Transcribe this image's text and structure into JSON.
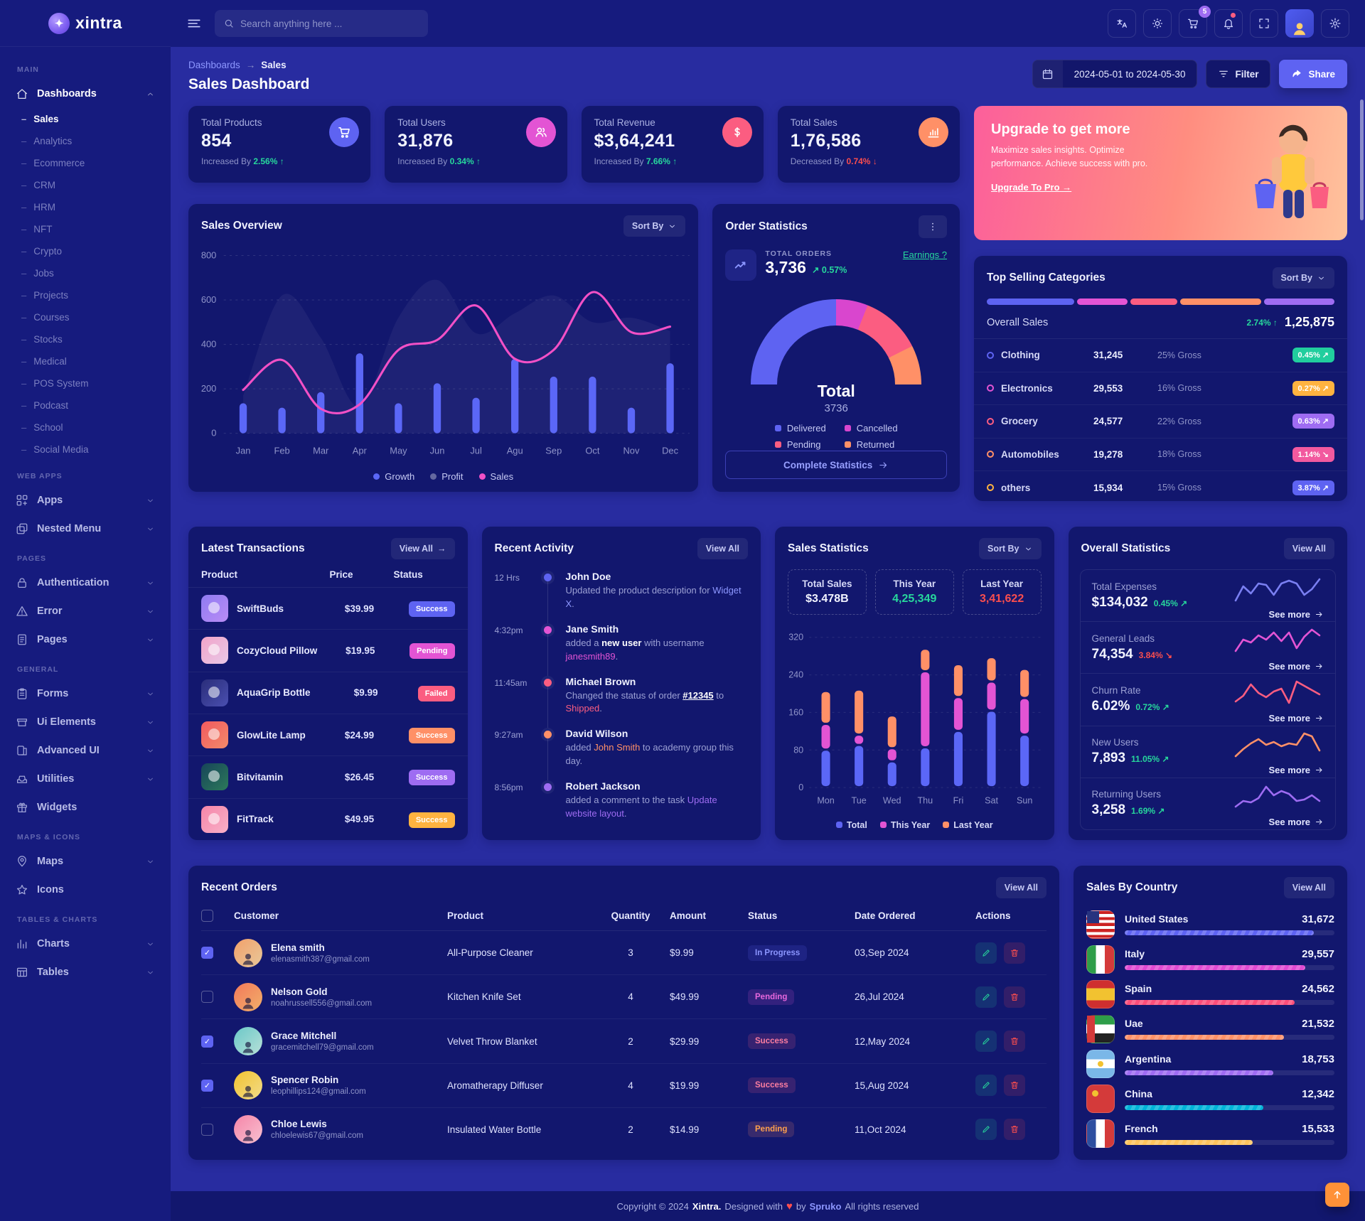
{
  "brand": {
    "name": "xintra"
  },
  "header": {
    "search_placeholder": "Search anything here ...",
    "cart_badge": "5",
    "icons": [
      "translate-icon",
      "light-mode-icon",
      "cart-icon",
      "notifications-icon",
      "fullscreen-icon",
      "avatar",
      "settings-icon"
    ]
  },
  "sidebar": {
    "sections": [
      {
        "label": "MAIN",
        "items": [
          {
            "label": "Dashboards",
            "icon": "home",
            "expanded": true,
            "active": true,
            "children": [
              "Sales",
              "Analytics",
              "Ecommerce",
              "CRM",
              "HRM",
              "NFT",
              "Crypto",
              "Jobs",
              "Projects",
              "Courses",
              "Stocks",
              "Medical",
              "POS System",
              "Podcast",
              "School",
              "Social Media"
            ],
            "active_child": "Sales"
          }
        ]
      },
      {
        "label": "WEB APPS",
        "items": [
          {
            "label": "Apps",
            "icon": "apps",
            "caret": true
          },
          {
            "label": "Nested Menu",
            "icon": "nested",
            "caret": true
          }
        ]
      },
      {
        "label": "PAGES",
        "items": [
          {
            "label": "Authentication",
            "icon": "lock",
            "caret": true
          },
          {
            "label": "Error",
            "icon": "warning",
            "caret": true
          },
          {
            "label": "Pages",
            "icon": "pages",
            "caret": true
          }
        ]
      },
      {
        "label": "GENERAL",
        "items": [
          {
            "label": "Forms",
            "icon": "forms",
            "caret": true
          },
          {
            "label": "Ui Elements",
            "icon": "uielements",
            "caret": true
          },
          {
            "label": "Advanced UI",
            "icon": "advanced",
            "caret": true
          },
          {
            "label": "Utilities",
            "icon": "utilities",
            "caret": true
          },
          {
            "label": "Widgets",
            "icon": "widgets",
            "caret": false
          }
        ]
      },
      {
        "label": "MAPS & ICONS",
        "items": [
          {
            "label": "Maps",
            "icon": "maps",
            "caret": true
          },
          {
            "label": "Icons",
            "icon": "star",
            "caret": false
          }
        ]
      },
      {
        "label": "TABLES & CHARTS",
        "items": [
          {
            "label": "Charts",
            "icon": "charts",
            "caret": true
          },
          {
            "label": "Tables",
            "icon": "tables",
            "caret": true
          }
        ]
      }
    ]
  },
  "page": {
    "breadcrumb_parent": "Dashboards",
    "breadcrumb_current": "Sales",
    "title": "Sales Dashboard",
    "date_range": "2024-05-01 to 2024-05-30",
    "filter_label": "Filter",
    "share_label": "Share"
  },
  "stat_cards": [
    {
      "label": "Total Products",
      "value": "854",
      "prefix": "Increased By",
      "delta": "2.56%",
      "dir": "up",
      "icon": "cart",
      "icon_bg": "#5e63f2"
    },
    {
      "label": "Total Users",
      "value": "31,876",
      "prefix": "Increased By",
      "delta": "0.34%",
      "dir": "up",
      "icon": "users",
      "icon_bg": "#e354d4"
    },
    {
      "label": "Total Revenue",
      "value": "$3,64,241",
      "prefix": "Increased By",
      "delta": "7.66%",
      "dir": "up",
      "icon": "dollar",
      "icon_bg": "#fb5d81"
    },
    {
      "label": "Total Sales",
      "value": "1,76,586",
      "prefix": "Decreased By",
      "delta": "0.74%",
      "dir": "down",
      "icon": "chartup",
      "icon_bg": "#ff9067"
    }
  ],
  "upgrade": {
    "title": "Upgrade to get more",
    "body": "Maximize sales insights. Optimize performance. Achieve success with pro.",
    "cta": "Upgrade To Pro"
  },
  "sales_overview": {
    "title": "Sales Overview",
    "sort_label": "Sort By"
  },
  "order_statistics": {
    "title": "Order Statistics",
    "total_label": "TOTAL ORDERS",
    "total_value": "3,736",
    "delta": "0.57%",
    "earnings_link": "Earnings ?",
    "gauge_center_label": "Total",
    "gauge_center_value": "3736",
    "cta": "Complete Statistics",
    "segments": [
      {
        "label": "Delivered",
        "value": 1870,
        "color": "#5e63f2"
      },
      {
        "label": "Cancelled",
        "value": 450,
        "color": "#d946ce"
      },
      {
        "label": "Pending",
        "value": 860,
        "color": "#fb5d81"
      },
      {
        "label": "Returned",
        "value": 556,
        "color": "#ff9067"
      }
    ]
  },
  "top_selling": {
    "title": "Top Selling Categories",
    "sort_label": "Sort By",
    "bar_segments": [
      {
        "color": "#5e63f2",
        "pct": 26
      },
      {
        "color": "#e354d4",
        "pct": 15
      },
      {
        "color": "#fb5d81",
        "pct": 14
      },
      {
        "color": "#ff9067",
        "pct": 24
      },
      {
        "color": "#9e6cf2",
        "pct": 21
      }
    ],
    "overall_label": "Overall Sales",
    "overall_delta": "2.74%",
    "overall_value": "1,25,875",
    "rows": [
      {
        "name": "Clothing",
        "dot": "#5e63f2",
        "value": "31,245",
        "gross": "25% Gross",
        "badge": "0.45%",
        "badge_bg": "#21ce9e",
        "trend": "up"
      },
      {
        "name": "Electronics",
        "dot": "#e354d4",
        "value": "29,553",
        "gross": "16% Gross",
        "badge": "0.27%",
        "badge_bg": "#ffb340",
        "trend": "up"
      },
      {
        "name": "Grocery",
        "dot": "#fb5d81",
        "value": "24,577",
        "gross": "22% Gross",
        "badge": "0.63%",
        "badge_bg": "#9e6cf2",
        "trend": "up"
      },
      {
        "name": "Automobiles",
        "dot": "#ff9067",
        "value": "19,278",
        "gross": "18% Gross",
        "badge": "1.14%",
        "badge_bg": "#f2599f",
        "trend": "down"
      },
      {
        "name": "others",
        "dot": "#ffb340",
        "value": "15,934",
        "gross": "15% Gross",
        "badge": "3.87%",
        "badge_bg": "#5e63f2",
        "trend": "up"
      }
    ]
  },
  "latest_transactions": {
    "title": "Latest Transactions",
    "view_all": "View All",
    "col_product": "Product",
    "col_price": "Price",
    "col_status": "Status",
    "rows": [
      {
        "name": "SwiftBuds",
        "price": "$39.99",
        "status": "Success",
        "badge_bg": "#5e63f2",
        "thumb": "linear-gradient(135deg,#8f7bf2,#b98cf5)"
      },
      {
        "name": "CozyCloud Pillow",
        "price": "$19.95",
        "status": "Pending",
        "badge_bg": "#e354d4",
        "thumb": "linear-gradient(135deg,#f2a3c8,#e8c8e8)"
      },
      {
        "name": "AquaGrip Bottle",
        "price": "$9.99",
        "status": "Failed",
        "badge_bg": "#fb5d81",
        "thumb": "linear-gradient(135deg,#2a2d7a,#4a4fb0)"
      },
      {
        "name": "GlowLite Lamp",
        "price": "$24.99",
        "status": "Success",
        "badge_bg": "#ff9067",
        "thumb": "linear-gradient(135deg,#f2595f,#f28a6a)"
      },
      {
        "name": "Bitvitamin",
        "price": "$26.45",
        "status": "Success",
        "badge_bg": "#9e6cf2",
        "thumb": "linear-gradient(135deg,#17445a,#2c7a5a)"
      },
      {
        "name": "FitTrack",
        "price": "$49.95",
        "status": "Success",
        "badge_bg": "#ffb340",
        "thumb": "linear-gradient(135deg,#f585a8,#f8b0c8)"
      }
    ]
  },
  "recent_activity": {
    "title": "Recent Activity",
    "view_all": "View All",
    "items": [
      {
        "time": "12 Hrs",
        "dot": "#5e63f2",
        "who": "John Doe",
        "body": [
          {
            "t": "Updated the product description for "
          },
          {
            "t": "Widget X",
            "c": "#8d97ff"
          },
          {
            "t": "."
          }
        ]
      },
      {
        "time": "4:32pm",
        "dot": "#e354d4",
        "who": "Jane Smith",
        "body": [
          {
            "t": "added a "
          },
          {
            "t": "new user",
            "c": "#ffffff",
            "b": true
          },
          {
            "t": " with username "
          },
          {
            "t": "janesmith89",
            "c": "#e354d4"
          },
          {
            "t": "."
          }
        ]
      },
      {
        "time": "11:45am",
        "dot": "#fb5d81",
        "who": "Michael Brown",
        "body": [
          {
            "t": "Changed the status of order "
          },
          {
            "t": "#12345",
            "c": "#ffffff",
            "b": true,
            "u": true
          },
          {
            "t": " to "
          },
          {
            "t": "Shipped",
            "c": "#fb5d81"
          },
          {
            "t": "."
          }
        ]
      },
      {
        "time": "9:27am",
        "dot": "#ff9067",
        "who": "David Wilson",
        "body": [
          {
            "t": "added "
          },
          {
            "t": "John Smith",
            "c": "#ff9067"
          },
          {
            "t": " to academy group this day."
          }
        ]
      },
      {
        "time": "8:56pm",
        "dot": "#9e6cf2",
        "who": "Robert Jackson",
        "body": [
          {
            "t": "added a comment to the task "
          },
          {
            "t": "Update website layout",
            "c": "#9e6cf2"
          },
          {
            "t": "."
          }
        ]
      }
    ]
  },
  "sales_statistics": {
    "title": "Sales Statistics",
    "sort_label": "Sort By",
    "boxes": [
      {
        "label": "Total Sales",
        "value": "$3.478B",
        "color": "#f2f4ff"
      },
      {
        "label": "This Year",
        "value": "4,25,349",
        "color": "#27d79c"
      },
      {
        "label": "Last Year",
        "value": "3,41,622",
        "color": "#fb4e4e"
      }
    ],
    "legend": [
      {
        "label": "Total",
        "color": "#5e63f2"
      },
      {
        "label": "This Year",
        "color": "#e354d4"
      },
      {
        "label": "Last Year",
        "color": "#ff9067"
      }
    ]
  },
  "overall_statistics": {
    "title": "Overall Statistics",
    "view_all": "View All",
    "see_more": "See more",
    "rows": [
      {
        "label": "Total Expenses",
        "value": "$134,032",
        "pct": "0.45%",
        "dir": "up",
        "spark_color": "#7a7ff2",
        "spark": [
          6,
          26,
          16,
          30,
          28,
          14,
          30,
          34,
          30,
          14,
          22,
          36
        ]
      },
      {
        "label": "General Leads",
        "value": "74,354",
        "pct": "3.84%",
        "dir": "down",
        "spark_color": "#e354d4",
        "spark": [
          8,
          24,
          20,
          30,
          24,
          34,
          22,
          34,
          12,
          28,
          38,
          30
        ]
      },
      {
        "label": "Churn Rate",
        "value": "6.02%",
        "pct": "0.72%",
        "dir": "up",
        "spark_color": "#fb5d81",
        "spark": [
          10,
          18,
          34,
          22,
          16,
          24,
          28,
          8,
          38,
          32,
          26,
          20
        ]
      },
      {
        "label": "New Users",
        "value": "7,893",
        "pct": "11.05%",
        "dir": "up",
        "spark_color": "#ff9067",
        "spark": [
          6,
          16,
          24,
          30,
          22,
          26,
          20,
          24,
          22,
          38,
          34,
          14
        ]
      },
      {
        "label": "Returning Users",
        "value": "3,258",
        "pct": "1.69%",
        "dir": "up",
        "spark_color": "#9e6cf2",
        "spark": [
          8,
          16,
          14,
          20,
          36,
          24,
          30,
          26,
          16,
          18,
          24,
          16
        ]
      }
    ]
  },
  "recent_orders": {
    "title": "Recent Orders",
    "view_all": "View All",
    "columns": [
      "Customer",
      "Product",
      "Quantity",
      "Amount",
      "Status",
      "Date Ordered",
      "Actions"
    ],
    "rows": [
      {
        "checked": true,
        "name": "Elena smith",
        "email": "elenasmith387@gmail.com",
        "avatar_bg": "linear-gradient(135deg,#f2a06a,#e8c89a)",
        "product": "All-Purpose Cleaner",
        "qty": "3",
        "amount": "$9.99",
        "status": "In Progress",
        "status_color": "#8b95ff",
        "status_bg": "rgba(94,99,242,.16)",
        "date": "03,Sep 2024"
      },
      {
        "checked": false,
        "name": "Nelson Gold",
        "email": "noahrussell556@gmail.com",
        "avatar_bg": "linear-gradient(135deg,#f2785a,#f2b06a)",
        "product": "Kitchen Knife Set",
        "qty": "4",
        "amount": "$49.99",
        "status": "Pending",
        "status_color": "#e868dd",
        "status_bg": "rgba(227,84,212,.16)",
        "date": "26,Jul 2024"
      },
      {
        "checked": true,
        "name": "Grace Mitchell",
        "email": "gracemitchell79@gmail.com",
        "avatar_bg": "linear-gradient(135deg,#6ac8c8,#b8e0d8)",
        "product": "Velvet Throw Blanket",
        "qty": "2",
        "amount": "$29.99",
        "status": "Success",
        "status_color": "#fb7da0",
        "status_bg": "rgba(251,93,129,.16)",
        "date": "12,May 2024"
      },
      {
        "checked": true,
        "name": "Spencer Robin",
        "email": "leophillips124@gmail.com",
        "avatar_bg": "linear-gradient(135deg,#f2c230,#f2dc8a)",
        "product": "Aromatherapy Diffuser",
        "qty": "4",
        "amount": "$19.99",
        "status": "Success",
        "status_color": "#fb7da0",
        "status_bg": "rgba(251,93,129,.16)",
        "date": "15,Aug 2024"
      },
      {
        "checked": false,
        "name": "Chloe Lewis",
        "email": "chloelewis67@gmail.com",
        "avatar_bg": "linear-gradient(135deg,#f585a8,#f8c0d0)",
        "product": "Insulated Water Bottle",
        "qty": "2",
        "amount": "$14.99",
        "status": "Pending",
        "status_color": "#ffa04d",
        "status_bg": "rgba(255,144,103,.16)",
        "date": "11,Oct 2024"
      }
    ]
  },
  "sales_by_country": {
    "title": "Sales By Country",
    "view_all": "View All",
    "rows": [
      {
        "name": "United States",
        "value": "31,672",
        "flag": "flag-us",
        "bar": "#5e63f2",
        "pct": 90
      },
      {
        "name": "Italy",
        "value": "29,557",
        "flag": "flag-it",
        "bar": "#e04ad2",
        "pct": 86
      },
      {
        "name": "Spain",
        "value": "24,562",
        "flag": "flag-es",
        "bar": "#fb4e7a",
        "pct": 81
      },
      {
        "name": "Uae",
        "value": "21,532",
        "flag": "flag-ae",
        "bar": "#ff9067",
        "pct": 76
      },
      {
        "name": "Argentina",
        "value": "18,753",
        "flag": "flag-ar",
        "bar": "#9e6cf2",
        "pct": 71
      },
      {
        "name": "China",
        "value": "12,342",
        "flag": "flag-cn",
        "bar": "#00b3d8",
        "pct": 66
      },
      {
        "name": "French",
        "value": "15,533",
        "flag": "flag-fr",
        "bar": "#ffc45d",
        "pct": 61
      }
    ]
  },
  "footer": {
    "pre": "Copyright © 2024",
    "brand": "Xintra.",
    "mid": "Designed with",
    "heart": "♥",
    "by": "by",
    "spruko": "Spruko",
    "post": "All rights reserved"
  },
  "chart_data": [
    {
      "type": "bar+line+area",
      "title": "Sales Overview",
      "categories": [
        "Jan",
        "Feb",
        "Mar",
        "Apr",
        "May",
        "Jun",
        "Jul",
        "Agu",
        "Sep",
        "Oct",
        "Nov",
        "Dec"
      ],
      "series": [
        {
          "name": "Growth",
          "type": "bar",
          "color": "#5b67f7",
          "values": [
            135,
            115,
            185,
            360,
            135,
            225,
            160,
            335,
            255,
            255,
            115,
            315
          ]
        },
        {
          "name": "Profit",
          "type": "area",
          "color": "rgba(255,255,255,0.05)",
          "values": [
            170,
            620,
            430,
            120,
            520,
            690,
            450,
            540,
            620,
            500,
            520,
            460
          ]
        },
        {
          "name": "Sales",
          "type": "line",
          "color": "#f250c6",
          "values": [
            195,
            330,
            110,
            130,
            375,
            420,
            575,
            335,
            375,
            635,
            455,
            480
          ]
        }
      ],
      "ylim": [
        0,
        800
      ],
      "yticks": [
        0,
        200,
        400,
        600,
        800
      ],
      "grid": true,
      "legend_position": "bottom"
    },
    {
      "type": "stacked-bar",
      "title": "Sales Statistics",
      "categories": [
        "Mon",
        "Tue",
        "Wed",
        "Thu",
        "Fri",
        "Sat",
        "Sun"
      ],
      "series": [
        {
          "name": "Total",
          "color": "#5b67f7",
          "values": [
            80,
            90,
            55,
            85,
            120,
            163,
            112
          ]
        },
        {
          "name": "This Year",
          "color": "#e354d4",
          "values": [
            55,
            22,
            28,
            162,
            72,
            62,
            78
          ]
        },
        {
          "name": "Last Year",
          "color": "#ff9067",
          "values": [
            70,
            96,
            70,
            48,
            70,
            52,
            62
          ]
        }
      ],
      "ylim": [
        0,
        320
      ],
      "yticks": [
        0,
        80,
        160,
        240,
        320
      ],
      "grid": true,
      "legend_position": "bottom"
    },
    {
      "type": "gauge",
      "title": "Order Statistics",
      "total": 3736,
      "slices": [
        {
          "label": "Delivered",
          "value": 1870,
          "color": "#5e63f2"
        },
        {
          "label": "Cancelled",
          "value": 450,
          "color": "#d946ce"
        },
        {
          "label": "Pending",
          "value": 860,
          "color": "#fb5d81"
        },
        {
          "label": "Returned",
          "value": 556,
          "color": "#ff9067"
        }
      ]
    }
  ]
}
